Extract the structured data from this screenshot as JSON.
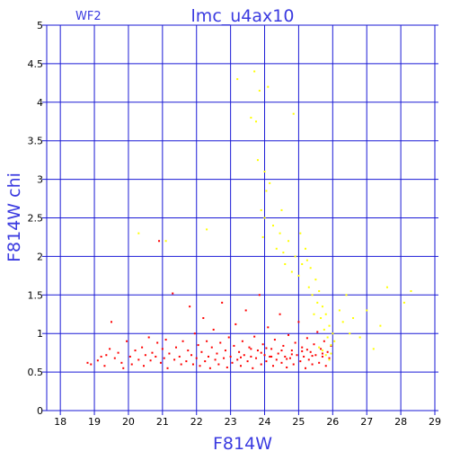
{
  "chart_data": {
    "type": "scatter",
    "title": "lmc_u4ax10",
    "corner_label": "WF2",
    "xlabel": "F814W",
    "ylabel": "F814W  chi",
    "xlim": [
      17.6,
      29
    ],
    "ylim": [
      0,
      5
    ],
    "xticks": [
      18,
      19,
      20,
      21,
      22,
      23,
      24,
      25,
      26,
      27,
      28,
      29
    ],
    "yticks": [
      0,
      0.5,
      1,
      1.5,
      2,
      2.5,
      3,
      3.5,
      4,
      4.5,
      5
    ],
    "grid": true,
    "colors": {
      "axes": "#1a1ad6",
      "text": "#3a3ae0",
      "red": "#ff0000",
      "yellow": "#ffff00"
    },
    "series": [
      {
        "color": "red",
        "points": [
          [
            18.8,
            0.62
          ],
          [
            18.9,
            0.6
          ],
          [
            19.1,
            0.65
          ],
          [
            19.2,
            0.7
          ],
          [
            19.3,
            0.58
          ],
          [
            19.35,
            0.72
          ],
          [
            19.45,
            0.8
          ],
          [
            19.5,
            1.15
          ],
          [
            19.6,
            0.68
          ],
          [
            19.7,
            0.75
          ],
          [
            19.8,
            0.62
          ],
          [
            19.85,
            0.55
          ],
          [
            19.95,
            0.9
          ],
          [
            20.05,
            0.7
          ],
          [
            20.1,
            0.6
          ],
          [
            20.2,
            0.78
          ],
          [
            20.3,
            0.66
          ],
          [
            20.4,
            0.82
          ],
          [
            20.45,
            0.58
          ],
          [
            20.5,
            0.72
          ],
          [
            20.6,
            0.95
          ],
          [
            20.65,
            0.65
          ],
          [
            20.7,
            0.75
          ],
          [
            20.8,
            0.7
          ],
          [
            20.85,
            0.88
          ],
          [
            20.9,
            2.2
          ],
          [
            20.95,
            0.62
          ],
          [
            21.0,
            0.8
          ],
          [
            21.05,
            0.68
          ],
          [
            21.1,
            0.92
          ],
          [
            21.15,
            0.55
          ],
          [
            21.2,
            0.74
          ],
          [
            21.3,
            1.52
          ],
          [
            21.35,
            0.66
          ],
          [
            21.4,
            0.82
          ],
          [
            21.5,
            0.7
          ],
          [
            21.55,
            0.6
          ],
          [
            21.6,
            0.9
          ],
          [
            21.7,
            0.64
          ],
          [
            21.75,
            0.78
          ],
          [
            21.8,
            1.35
          ],
          [
            21.85,
            0.72
          ],
          [
            21.9,
            0.6
          ],
          [
            21.95,
            1.0
          ],
          [
            22.0,
            0.68
          ],
          [
            22.05,
            0.85
          ],
          [
            22.1,
            0.58
          ],
          [
            22.15,
            0.76
          ],
          [
            22.2,
            1.2
          ],
          [
            22.25,
            0.64
          ],
          [
            22.3,
            0.9
          ],
          [
            22.35,
            0.7
          ],
          [
            22.4,
            0.55
          ],
          [
            22.45,
            0.82
          ],
          [
            22.5,
            1.05
          ],
          [
            22.55,
            0.66
          ],
          [
            22.6,
            0.74
          ],
          [
            22.65,
            0.6
          ],
          [
            22.7,
            0.88
          ],
          [
            22.75,
            1.4
          ],
          [
            22.8,
            0.68
          ],
          [
            22.85,
            0.78
          ],
          [
            22.9,
            0.56
          ],
          [
            22.95,
            0.95
          ],
          [
            23.0,
            0.7
          ],
          [
            23.05,
            0.62
          ],
          [
            23.1,
            0.84
          ],
          [
            23.15,
            1.12
          ],
          [
            23.2,
            0.66
          ],
          [
            23.25,
            0.76
          ],
          [
            23.3,
            0.58
          ],
          [
            23.35,
            0.9
          ],
          [
            23.4,
            0.72
          ],
          [
            23.45,
            1.3
          ],
          [
            23.5,
            0.64
          ],
          [
            23.55,
            0.82
          ],
          [
            23.6,
            0.7
          ],
          [
            23.65,
            0.55
          ],
          [
            23.7,
            0.96
          ],
          [
            23.75,
            0.68
          ],
          [
            23.8,
            0.78
          ],
          [
            23.85,
            1.5
          ],
          [
            23.9,
            0.6
          ],
          [
            23.95,
            0.86
          ],
          [
            24.0,
            0.72
          ],
          [
            24.05,
            0.64
          ],
          [
            24.1,
            1.08
          ],
          [
            24.15,
            0.7
          ],
          [
            24.2,
            0.8
          ],
          [
            24.25,
            0.58
          ],
          [
            24.3,
            0.92
          ],
          [
            24.35,
            0.66
          ],
          [
            24.4,
            0.74
          ],
          [
            24.45,
            1.25
          ],
          [
            24.5,
            0.62
          ],
          [
            24.55,
            0.84
          ],
          [
            24.6,
            0.7
          ],
          [
            24.65,
            0.56
          ],
          [
            24.7,
            0.98
          ],
          [
            24.75,
            0.68
          ],
          [
            24.8,
            0.78
          ],
          [
            24.85,
            0.6
          ],
          [
            24.9,
            0.88
          ],
          [
            24.95,
            0.72
          ],
          [
            25.0,
            1.15
          ],
          [
            25.05,
            0.64
          ],
          [
            25.1,
            0.82
          ],
          [
            25.15,
            0.7
          ],
          [
            25.2,
            0.55
          ],
          [
            25.25,
            0.94
          ],
          [
            25.3,
            0.66
          ],
          [
            25.35,
            0.76
          ],
          [
            25.4,
            0.6
          ],
          [
            25.45,
            0.86
          ],
          [
            25.5,
            0.72
          ],
          [
            25.55,
            1.02
          ],
          [
            25.6,
            0.62
          ],
          [
            25.65,
            0.8
          ],
          [
            25.7,
            0.7
          ],
          [
            25.75,
            0.9
          ],
          [
            25.8,
            0.58
          ],
          [
            25.85,
            0.76
          ],
          [
            25.9,
            0.68
          ],
          [
            25.95,
            0.84
          ],
          [
            23.6,
            0.8
          ],
          [
            23.9,
            0.75
          ],
          [
            24.2,
            0.7
          ],
          [
            24.5,
            0.78
          ],
          [
            24.8,
            0.73
          ],
          [
            25.1,
            0.77
          ],
          [
            25.4,
            0.71
          ],
          [
            25.7,
            0.74
          ],
          [
            23.3,
            0.69
          ],
          [
            24.05,
            0.81
          ],
          [
            24.65,
            0.67
          ],
          [
            25.25,
            0.79
          ]
        ]
      },
      {
        "color": "yellow",
        "points": [
          [
            22.3,
            2.35
          ],
          [
            23.2,
            4.3
          ],
          [
            23.6,
            3.8
          ],
          [
            23.7,
            4.4
          ],
          [
            23.75,
            3.75
          ],
          [
            23.8,
            3.25
          ],
          [
            23.85,
            4.15
          ],
          [
            24.0,
            3.1
          ],
          [
            24.1,
            4.2
          ],
          [
            24.05,
            2.85
          ],
          [
            23.9,
            2.6
          ],
          [
            24.15,
            2.95
          ],
          [
            24.0,
            2.5
          ],
          [
            23.95,
            2.25
          ],
          [
            24.25,
            2.4
          ],
          [
            24.35,
            2.1
          ],
          [
            24.45,
            2.3
          ],
          [
            24.55,
            2.05
          ],
          [
            24.6,
            1.9
          ],
          [
            24.7,
            2.2
          ],
          [
            24.8,
            1.8
          ],
          [
            24.9,
            2.0
          ],
          [
            25.0,
            1.75
          ],
          [
            25.1,
            1.9
          ],
          [
            25.2,
            2.1
          ],
          [
            25.3,
            1.6
          ],
          [
            25.35,
            1.85
          ],
          [
            25.4,
            1.5
          ],
          [
            25.5,
            1.7
          ],
          [
            25.55,
            1.4
          ],
          [
            25.6,
            1.55
          ],
          [
            25.65,
            1.2
          ],
          [
            25.7,
            1.35
          ],
          [
            25.75,
            1.05
          ],
          [
            25.8,
            1.25
          ],
          [
            25.85,
            0.95
          ],
          [
            25.9,
            1.1
          ],
          [
            25.95,
            0.85
          ],
          [
            26.0,
            1.0
          ],
          [
            26.05,
            0.9
          ],
          [
            26.2,
            1.3
          ],
          [
            26.3,
            1.15
          ],
          [
            26.4,
            1.5
          ],
          [
            26.5,
            1.0
          ],
          [
            26.6,
            1.2
          ],
          [
            26.8,
            0.95
          ],
          [
            27.0,
            1.3
          ],
          [
            27.2,
            0.8
          ],
          [
            27.4,
            1.1
          ],
          [
            27.6,
            1.6
          ],
          [
            28.1,
            1.4
          ],
          [
            28.3,
            1.55
          ],
          [
            24.85,
            3.85
          ],
          [
            24.5,
            2.6
          ],
          [
            25.05,
            2.3
          ],
          [
            25.25,
            1.95
          ],
          [
            25.45,
            1.25
          ],
          [
            25.7,
            0.78
          ],
          [
            25.8,
            0.72
          ],
          [
            25.9,
            0.66
          ],
          [
            25.95,
            0.74
          ],
          [
            25.6,
            0.82
          ],
          [
            20.3,
            2.3
          ],
          [
            21.1,
            2.2
          ]
        ]
      }
    ]
  }
}
